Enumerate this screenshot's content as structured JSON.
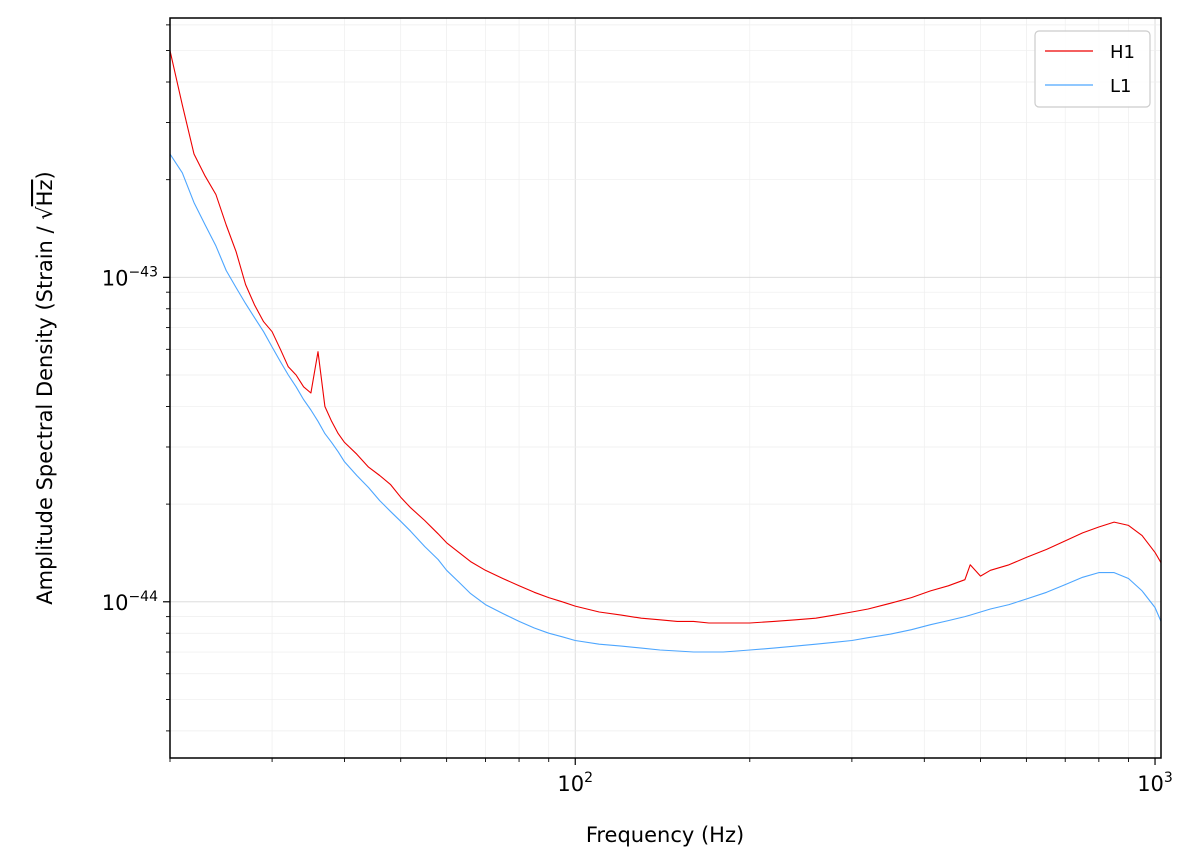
{
  "chart_data": {
    "type": "line",
    "xscale": "log",
    "yscale": "log",
    "xlim": [
      20,
      1024
    ],
    "ylim": [
      3.3e-45,
      6.3e-43
    ],
    "grid": true,
    "legend_position": "upper right",
    "xlabel": "Frequency (Hz)",
    "ylabel_prefix": "Amplitude Spectral Density (Strain / ",
    "ylabel_sqrt": "√",
    "ylabel_radicand": "Hz",
    "ylabel_suffix": ")",
    "x_ticks": [
      {
        "value": 100,
        "base": "10",
        "exp": "2"
      },
      {
        "value": 1000,
        "base": "10",
        "exp": "3"
      }
    ],
    "y_ticks": [
      {
        "value": 1e-44,
        "base": "10",
        "exp": "−44"
      },
      {
        "value": 1e-43,
        "base": "10",
        "exp": "−43"
      }
    ],
    "series": [
      {
        "name": "H1",
        "color": "#ee0000",
        "x": [
          20,
          21,
          22,
          23,
          24,
          25,
          26,
          27,
          28,
          29,
          30,
          31,
          32,
          33,
          34,
          35,
          36,
          37,
          38,
          39,
          40,
          42,
          44,
          46,
          48,
          50,
          52,
          55,
          58,
          60,
          63,
          66,
          70,
          75,
          80,
          85,
          90,
          95,
          100,
          110,
          120,
          130,
          140,
          150,
          160,
          170,
          180,
          190,
          200,
          220,
          240,
          260,
          280,
          300,
          320,
          350,
          380,
          410,
          440,
          470,
          480,
          500,
          520,
          560,
          600,
          650,
          700,
          750,
          800,
          850,
          900,
          950,
          1000,
          1024
        ],
        "y": [
          5e-43,
          3.4e-43,
          2.4e-43,
          2.05e-43,
          1.8e-43,
          1.45e-43,
          1.2e-43,
          9.5e-44,
          8.2e-44,
          7.3e-44,
          6.8e-44,
          6e-44,
          5.3e-44,
          5e-44,
          4.6e-44,
          4.4e-44,
          5.9e-44,
          4e-44,
          3.6e-44,
          3.3e-44,
          3.1e-44,
          2.85e-44,
          2.6e-44,
          2.45e-44,
          2.3e-44,
          2.1e-44,
          1.95e-44,
          1.78e-44,
          1.62e-44,
          1.52e-44,
          1.42e-44,
          1.33e-44,
          1.25e-44,
          1.18e-44,
          1.12e-44,
          1.07e-44,
          1.03e-44,
          1e-44,
          9.7e-45,
          9.3e-45,
          9.1e-45,
          8.9e-45,
          8.8e-45,
          8.7e-45,
          8.7e-45,
          8.6e-45,
          8.6e-45,
          8.6e-45,
          8.6e-45,
          8.7e-45,
          8.8e-45,
          8.9e-45,
          9.1e-45,
          9.3e-45,
          9.5e-45,
          9.9e-45,
          1.03e-44,
          1.08e-44,
          1.12e-44,
          1.17e-44,
          1.3e-44,
          1.2e-44,
          1.25e-44,
          1.3e-44,
          1.37e-44,
          1.45e-44,
          1.54e-44,
          1.63e-44,
          1.7e-44,
          1.76e-44,
          1.72e-44,
          1.6e-44,
          1.42e-44,
          1.32e-44
        ]
      },
      {
        "name": "L1",
        "color": "#4da6ff",
        "x": [
          20,
          21,
          22,
          23,
          24,
          25,
          26,
          27,
          28,
          29,
          30,
          31,
          32,
          33,
          34,
          35,
          36,
          37,
          38,
          39,
          40,
          42,
          44,
          46,
          48,
          50,
          52,
          55,
          58,
          60,
          63,
          66,
          70,
          75,
          80,
          85,
          90,
          95,
          100,
          110,
          120,
          130,
          140,
          150,
          160,
          170,
          180,
          190,
          200,
          220,
          240,
          260,
          280,
          300,
          320,
          350,
          380,
          410,
          440,
          470,
          480,
          500,
          520,
          560,
          600,
          650,
          700,
          750,
          800,
          850,
          900,
          950,
          1000,
          1024
        ],
        "y": [
          2.4e-43,
          2.1e-43,
          1.7e-43,
          1.45e-43,
          1.25e-43,
          1.05e-43,
          9.3e-44,
          8.3e-44,
          7.5e-44,
          6.8e-44,
          6.1e-44,
          5.5e-44,
          5e-44,
          4.6e-44,
          4.2e-44,
          3.9e-44,
          3.6e-44,
          3.3e-44,
          3.1e-44,
          2.9e-44,
          2.7e-44,
          2.45e-44,
          2.25e-44,
          2.05e-44,
          1.9e-44,
          1.77e-44,
          1.65e-44,
          1.48e-44,
          1.35e-44,
          1.25e-44,
          1.15e-44,
          1.06e-44,
          9.8e-45,
          9.2e-45,
          8.7e-45,
          8.3e-45,
          8e-45,
          7.8e-45,
          7.6e-45,
          7.4e-45,
          7.3e-45,
          7.2e-45,
          7.1e-45,
          7.05e-45,
          7e-45,
          7e-45,
          7e-45,
          7.05e-45,
          7.1e-45,
          7.2e-45,
          7.3e-45,
          7.4e-45,
          7.5e-45,
          7.6e-45,
          7.75e-45,
          7.95e-45,
          8.2e-45,
          8.5e-45,
          8.75e-45,
          9e-45,
          9.1e-45,
          9.3e-45,
          9.5e-45,
          9.8e-45,
          1.02e-44,
          1.07e-44,
          1.13e-44,
          1.19e-44,
          1.23e-44,
          1.23e-44,
          1.18e-44,
          1.08e-44,
          9.6e-45,
          8.7e-45
        ]
      }
    ]
  }
}
